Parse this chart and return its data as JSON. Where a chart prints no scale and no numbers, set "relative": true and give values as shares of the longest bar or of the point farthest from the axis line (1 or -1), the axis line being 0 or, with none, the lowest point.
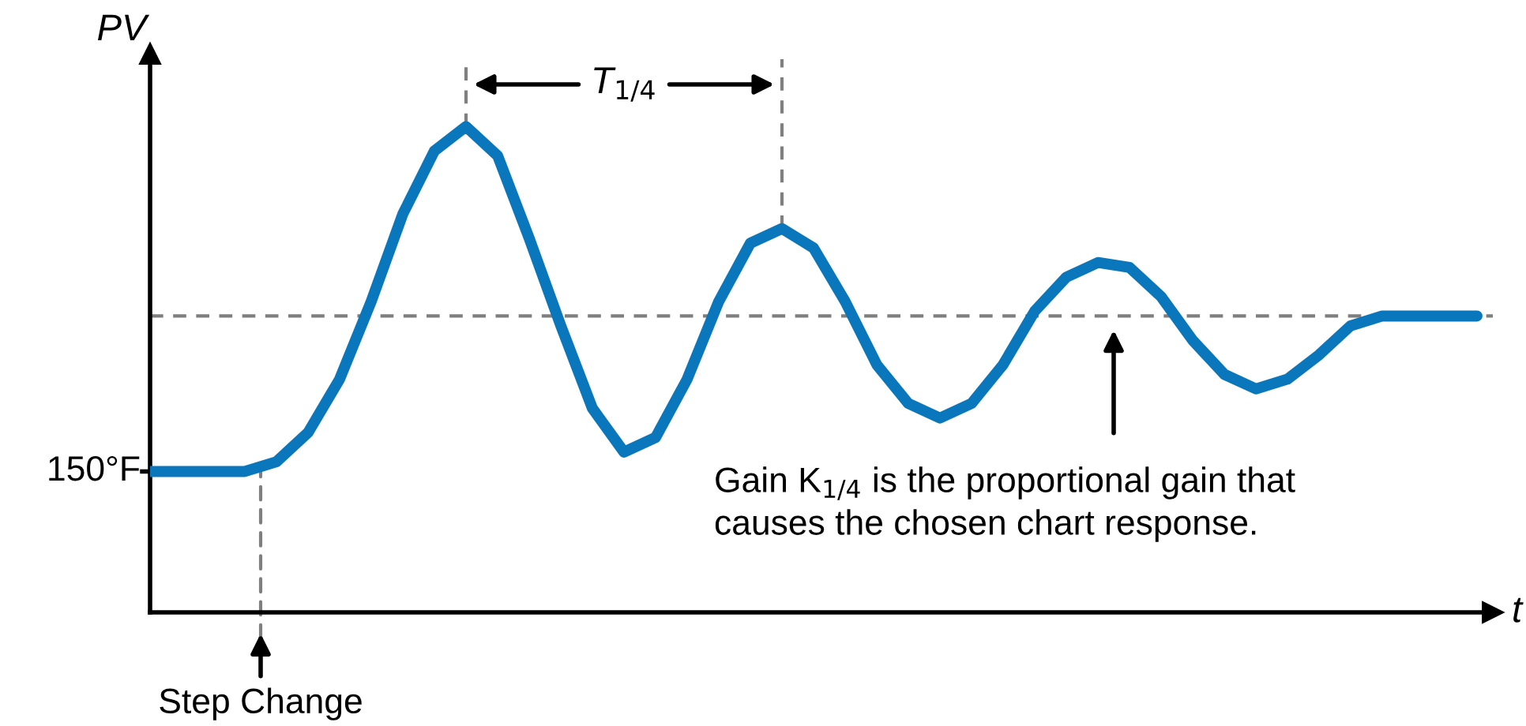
{
  "chart_data": {
    "type": "line",
    "relative": true,
    "ylabel": "PV",
    "xlabel": "t",
    "categories": [
      null,
      null,
      null,
      null,
      null,
      null,
      null,
      null,
      null,
      null,
      null,
      null,
      null,
      null,
      null,
      null,
      null,
      null,
      null,
      null,
      null,
      null,
      null,
      null,
      null,
      null,
      null,
      null,
      null,
      null,
      null,
      null,
      null,
      null,
      null,
      null,
      null,
      null,
      null,
      null,
      null,
      null,
      null
    ],
    "series": [
      {
        "color": "#0a77bd",
        "values": [
          0.29,
          0.29,
          0.29,
          0.29,
          0.31,
          0.37,
          0.48,
          0.64,
          0.82,
          0.95,
          1.0,
          0.94,
          0.77,
          0.59,
          0.42,
          0.33,
          0.36,
          0.48,
          0.64,
          0.76,
          0.79,
          0.75,
          0.64,
          0.51,
          0.43,
          0.4,
          0.43,
          0.51,
          0.62,
          0.69,
          0.72,
          0.71,
          0.65,
          0.56,
          0.49,
          0.46,
          0.48,
          0.53,
          0.59,
          0.61,
          0.61,
          0.61,
          0.61
        ]
      }
    ],
    "marker": "none",
    "line_style": "solid",
    "ref_lines": [
      {
        "axis": "y",
        "value": 0.61,
        "color": "#7f7f7f",
        "line_style": "dashed"
      }
    ],
    "annotations": [
      "150°F",
      "T$_{1/4}$",
      "Gain K$_{1/4}$ is the proportional gain that\ncauses the chosen chart response.",
      "Step Change"
    ]
  }
}
